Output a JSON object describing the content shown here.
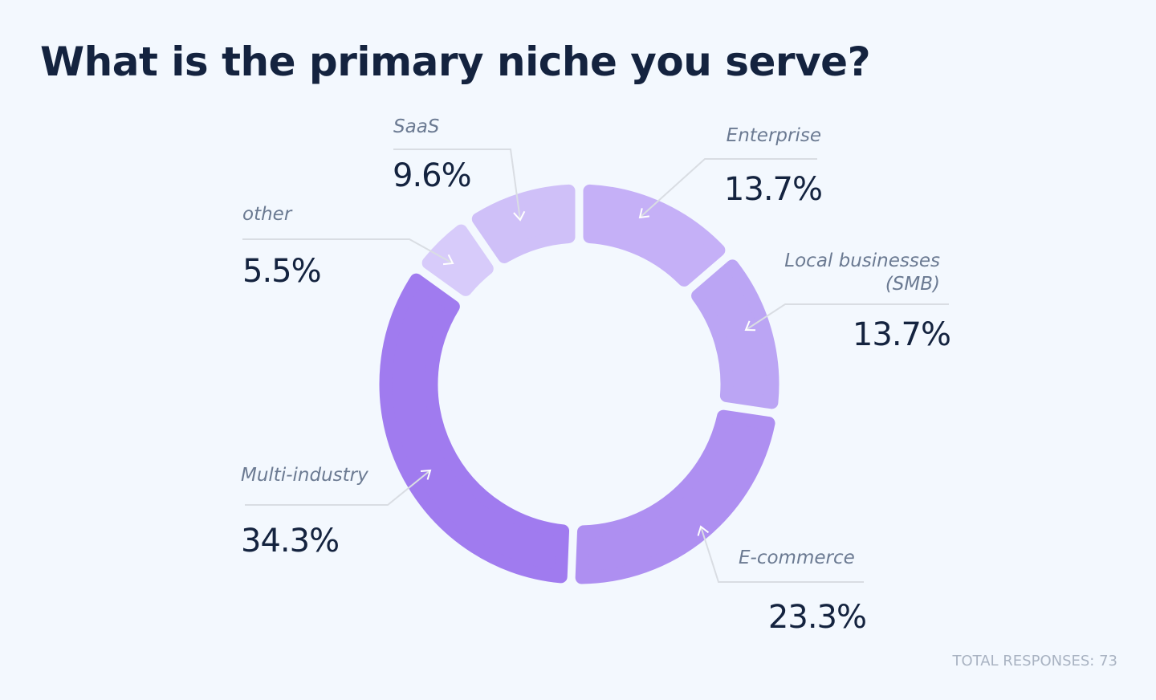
{
  "chart_data": {
    "type": "pie",
    "variant": "donut",
    "title": "What is the primary niche you serve?",
    "start": "top",
    "direction": "clockwise",
    "slices": [
      {
        "label": "Enterprise",
        "value": 13.7,
        "display": "13.7%",
        "color": "#c5b0f7"
      },
      {
        "label": "Local businesses (SMB)",
        "value": 13.7,
        "display": "13.7%",
        "color": "#bba5f4"
      },
      {
        "label": "E-commerce",
        "value": 23.3,
        "display": "23.3%",
        "color": "#ae8ff1"
      },
      {
        "label": "Multi-industry",
        "value": 34.3,
        "display": "34.3%",
        "color": "#a07bef"
      },
      {
        "label": "other",
        "value": 5.5,
        "display": "5.5%",
        "color": "#d7cbfa"
      },
      {
        "label": "SaaS",
        "value": 9.6,
        "display": "9.6%",
        "color": "#cfc0f8"
      }
    ],
    "footer": "TOTAL RESPONSES: 73"
  }
}
